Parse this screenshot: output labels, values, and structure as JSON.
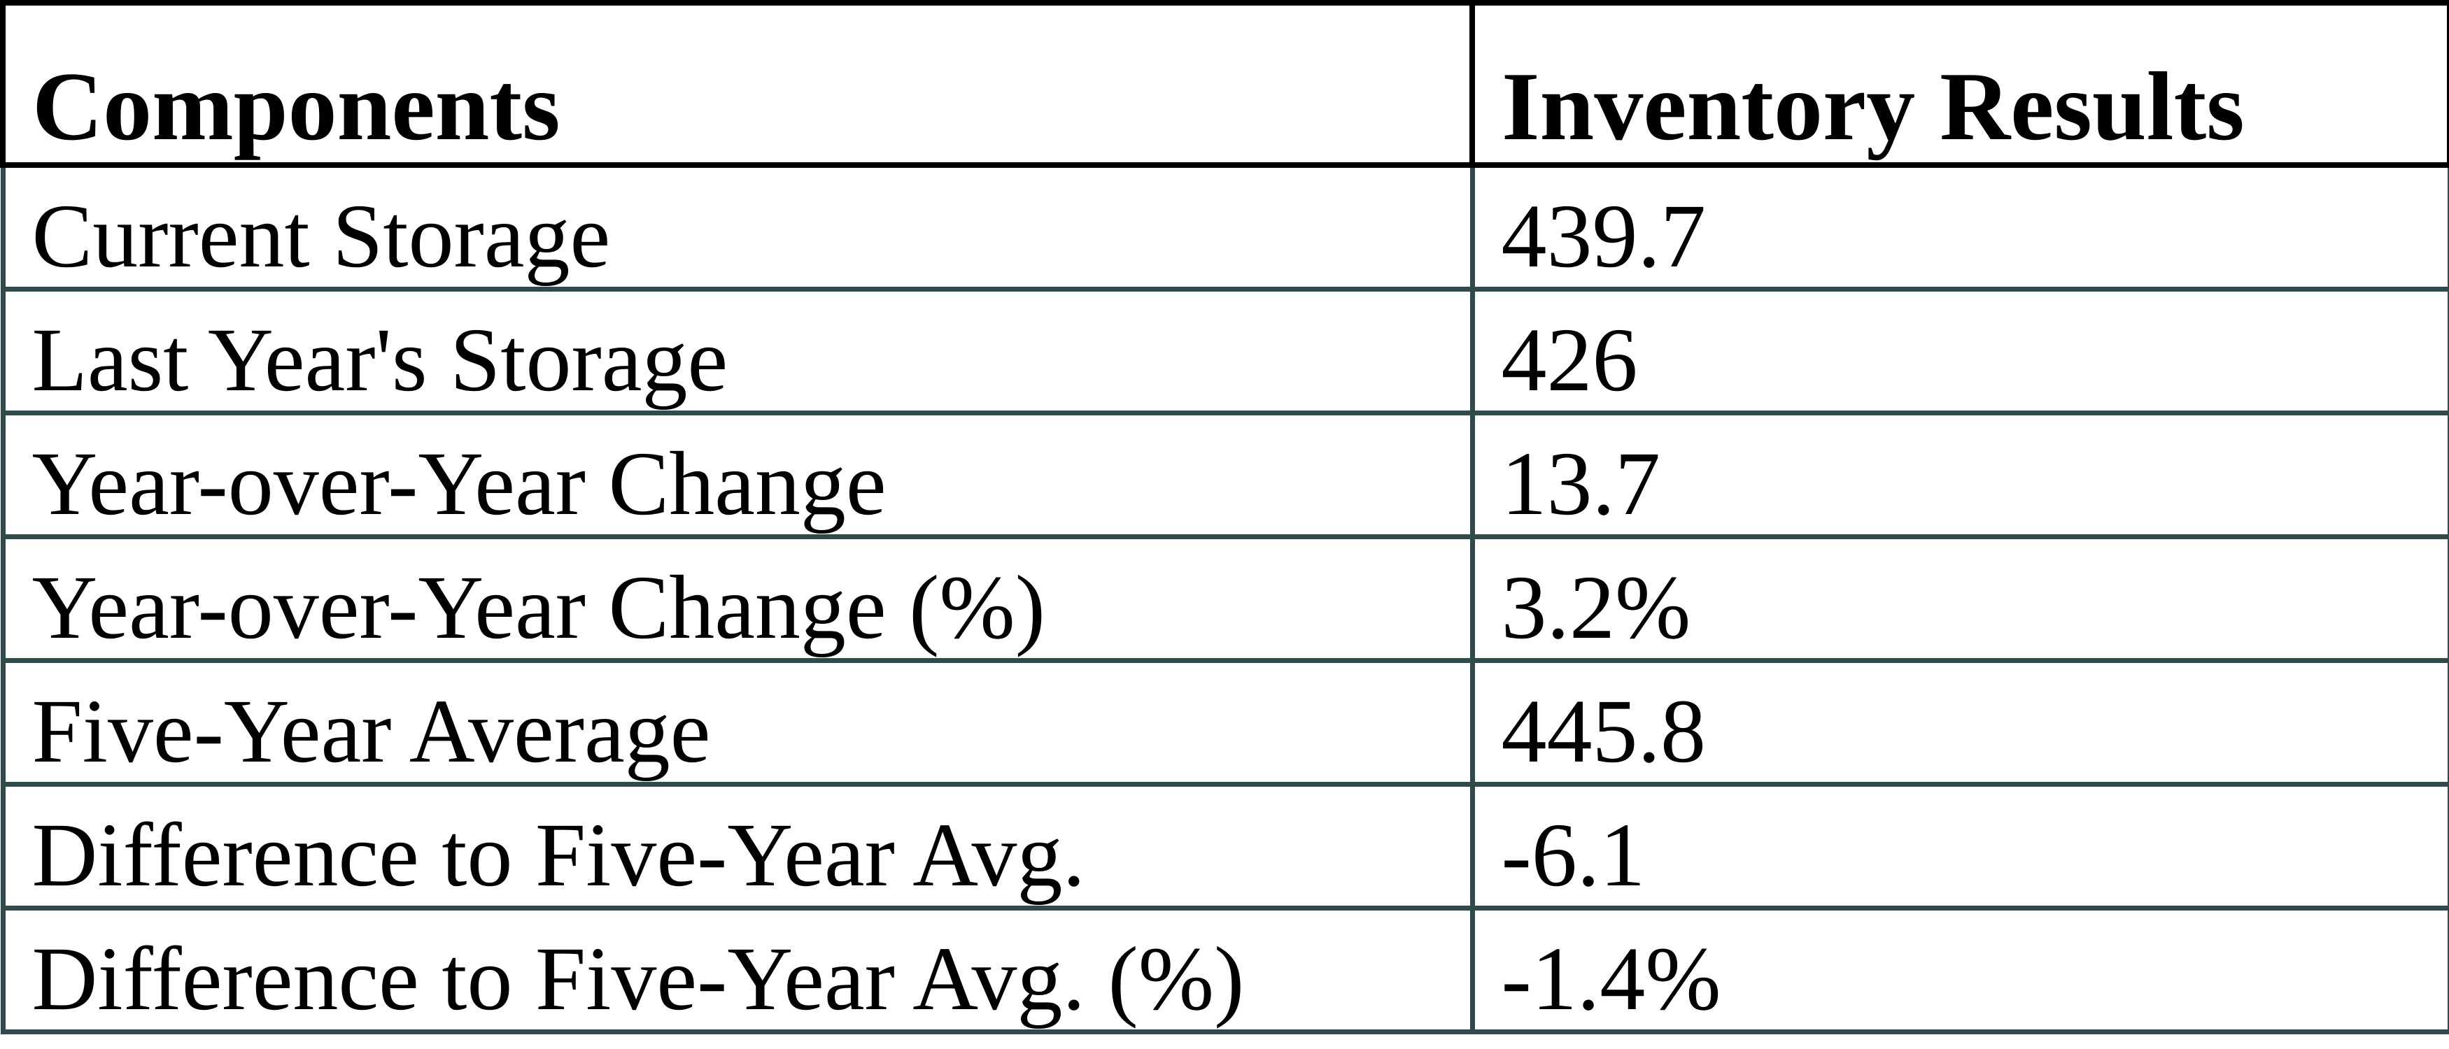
{
  "page": {
    "background": "#ffffff"
  },
  "table": {
    "name": "inventory-summary-table",
    "border_colors": {
      "header": "#000000",
      "body": "#2e4a4a"
    },
    "columns": [
      {
        "label": "Components"
      },
      {
        "label": "Inventory Results"
      }
    ],
    "rows": [
      {
        "component": "Current Storage",
        "result": "439.7"
      },
      {
        "component": "Last Year's Storage",
        "result": "426"
      },
      {
        "component": "Year-over-Year Change",
        "result": "13.7"
      },
      {
        "component": "Year-over-Year Change (%)",
        "result": "3.2%"
      },
      {
        "component": "Five-Year Average",
        "result": "445.8"
      },
      {
        "component": "Difference to Five-Year Avg.",
        "result": "-6.1"
      },
      {
        "component": "Difference to Five-Year Avg. (%)",
        "result": "-1.4%"
      }
    ]
  }
}
